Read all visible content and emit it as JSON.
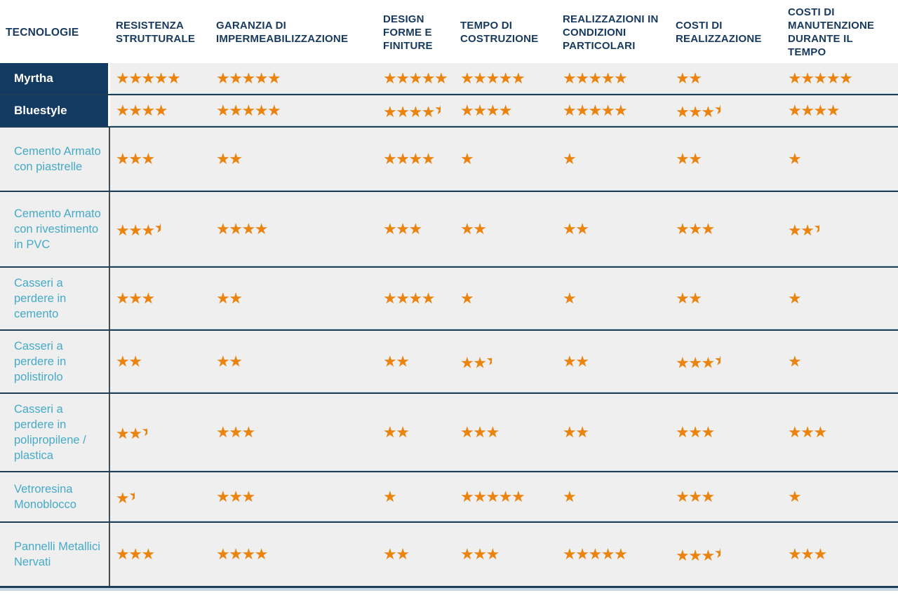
{
  "chart_data": {
    "type": "table",
    "title_column_header": "TECNOLOGIE",
    "columns": [
      "RESISTENZA STRUTTURALE",
      "GARANZIA DI IMPERMEABILIZZAZIONE",
      "DESIGN FORME E FINITURE",
      "TEMPO DI COSTRUZIONE",
      "REALIZZAZIONI IN CONDIZIONI PARTICOLARI",
      "COSTI DI REALIZZAZIONE",
      "COSTI DI MANUTENZIONE DURANTE IL TEMPO"
    ],
    "rating_scale": {
      "max": 5,
      "symbol": "star",
      "star_glyph": "★"
    },
    "rows": [
      {
        "label": "Myrtha",
        "brand": true,
        "ratings": [
          5,
          5,
          5,
          5,
          5,
          2,
          5
        ]
      },
      {
        "label": "Bluestyle",
        "brand": true,
        "ratings": [
          4,
          5,
          4.5,
          4,
          5,
          3.5,
          4
        ]
      },
      {
        "label": "Cemento Armato con piastrelle",
        "brand": false,
        "ratings": [
          3,
          2,
          4,
          1,
          1,
          2,
          1
        ]
      },
      {
        "label": "Cemento Armato con rivestimento in PVC",
        "brand": false,
        "ratings": [
          3.5,
          4,
          3,
          2,
          2,
          3,
          2.5
        ]
      },
      {
        "label": "Casseri a perdere in cemento",
        "brand": false,
        "ratings": [
          3,
          2,
          4,
          1,
          1,
          2,
          1
        ]
      },
      {
        "label": "Casseri a perdere in polistirolo",
        "brand": false,
        "ratings": [
          2,
          2,
          2,
          2.5,
          2,
          3.5,
          1
        ]
      },
      {
        "label": "Casseri a perdere in polipropilene / plastica",
        "brand": false,
        "ratings": [
          2.5,
          3,
          2,
          3,
          2,
          3,
          3
        ]
      },
      {
        "label": "Vetroresina Monoblocco",
        "brand": false,
        "ratings": [
          1.5,
          3,
          1,
          5,
          1,
          3,
          1
        ]
      },
      {
        "label": "Pannelli Metallici Nervati",
        "brand": false,
        "ratings": [
          3,
          4,
          2,
          3,
          5,
          3.5,
          3
        ]
      }
    ]
  },
  "colors": {
    "header_text": "#17395e",
    "brand_row_background": "#133a60",
    "brand_row_text": "#ffffff",
    "tech_label_text": "#46aac8",
    "row_background": "#efefef",
    "star_orange": "#eb830f",
    "separator_dark": "#1e3d57",
    "separator_light": "#c6d8e3",
    "column_divider": "#434c55"
  }
}
